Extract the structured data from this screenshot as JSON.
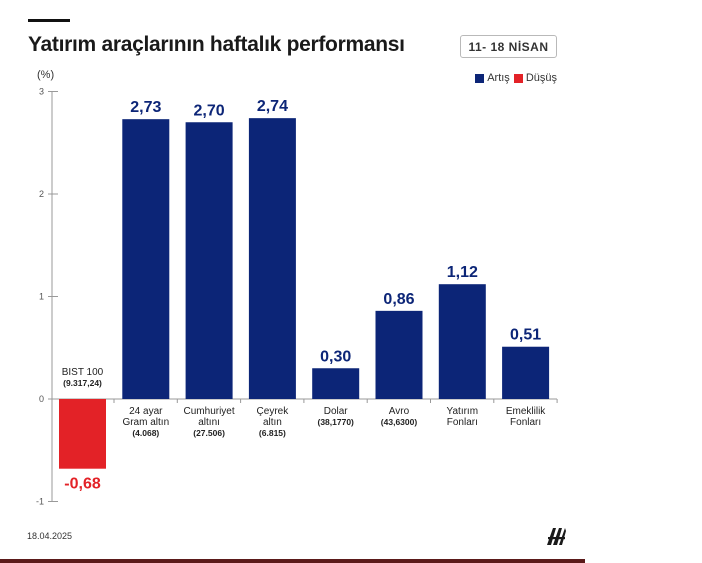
{
  "header": {
    "title": "Yatırım araçlarının haftalık performansı",
    "date_range": "11- 18 NİSAN"
  },
  "legend": {
    "up_label": "Artış",
    "down_label": "Düşüş",
    "up_color": "#0c2577",
    "down_color": "#e32227"
  },
  "unit_label": "(%)",
  "footer": {
    "date": "18.04.2025",
    "logo_icon": "aa-logo-icon"
  },
  "chart_data": {
    "type": "bar",
    "ylim": [
      -1,
      3
    ],
    "yticks": [
      "-1",
      "0",
      "1",
      "2",
      "3"
    ],
    "categories": [
      {
        "lines": [
          "BIST 100",
          "(9.317,24)"
        ]
      },
      {
        "lines": [
          "24 ayar",
          "Gram altın",
          "(4.068)"
        ]
      },
      {
        "lines": [
          "Cumhuriyet",
          "altını",
          "(27.506)"
        ]
      },
      {
        "lines": [
          "Çeyrek",
          "altın",
          "(6.815)"
        ]
      },
      {
        "lines": [
          "Dolar",
          "(38,1770)"
        ]
      },
      {
        "lines": [
          "Avro",
          "(43,6300)"
        ]
      },
      {
        "lines": [
          "Yatırım",
          "Fonları"
        ]
      },
      {
        "lines": [
          "Emeklilik",
          "Fonları"
        ]
      }
    ],
    "values": [
      -0.68,
      2.73,
      2.7,
      2.74,
      0.3,
      0.86,
      1.12,
      0.51
    ],
    "value_labels": [
      "-0,68",
      "2,73",
      "2,70",
      "2,74",
      "0,30",
      "0,86",
      "1,12",
      "0,51"
    ],
    "grid": false
  }
}
